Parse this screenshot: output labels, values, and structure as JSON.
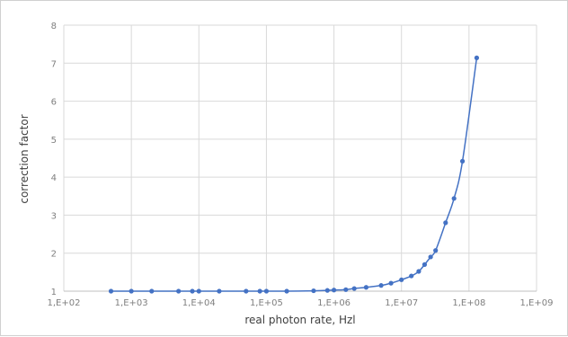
{
  "chart_data": {
    "type": "scatter",
    "title": "",
    "xlabel": "real photon rate, Hzl",
    "ylabel": "correction factor",
    "x_scale": "log10",
    "xlim": [
      100,
      1000000000
    ],
    "ylim": [
      1,
      8
    ],
    "grid": true,
    "legend": "none",
    "line_color": "#4472c4",
    "marker_color": "#4472c4",
    "x_tick_labels": [
      "1,E+02",
      "1,E+03",
      "1,E+04",
      "1,E+05",
      "1,E+06",
      "1,E+07",
      "1,E+08",
      "1,E+09"
    ],
    "y_tick_labels": [
      "1",
      "2",
      "3",
      "4",
      "5",
      "6",
      "7",
      "8"
    ],
    "series": [
      {
        "x": [
          500,
          1000,
          2000,
          5000,
          8000,
          10000,
          20000,
          50000,
          80000,
          100000,
          200000,
          500000,
          800000,
          1000000,
          1500000,
          2000000,
          3000000,
          5000000,
          7000000,
          10000000,
          14000000,
          18000000,
          22000000,
          27000000,
          32000000,
          45000000,
          60000000,
          80000000,
          130000000
        ],
        "y": [
          1.0,
          1.0,
          1.0,
          1.0,
          1.0,
          1.0,
          1.0,
          1.0,
          1.0,
          1.0,
          1.0,
          1.01,
          1.02,
          1.03,
          1.04,
          1.07,
          1.1,
          1.15,
          1.21,
          1.3,
          1.4,
          1.52,
          1.7,
          1.9,
          2.07,
          2.8,
          3.44,
          4.42,
          7.14
        ]
      }
    ]
  }
}
